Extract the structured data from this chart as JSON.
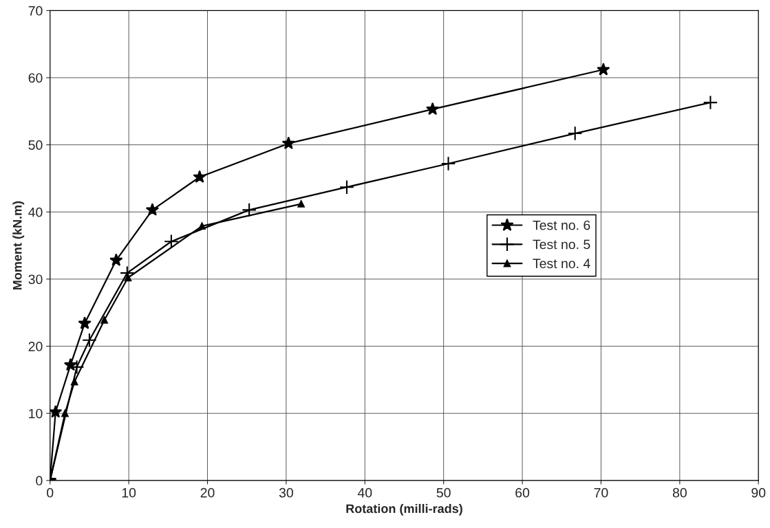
{
  "chart_data": {
    "type": "line",
    "xlabel": "Rotation (milli-rads)",
    "ylabel": "Moment (kN.m)",
    "xlim": [
      0,
      90
    ],
    "xticks": [
      0,
      10,
      20,
      30,
      40,
      50,
      60,
      70,
      80,
      90
    ],
    "ylim": [
      0,
      70
    ],
    "yticks": [
      0,
      10,
      20,
      30,
      40,
      50,
      60,
      70
    ],
    "grid": true,
    "legend": "right",
    "line_style": "solid",
    "series": [
      {
        "name": "Test no. 6",
        "color": "#000000",
        "marker": "star",
        "x": [
          0,
          0.7,
          2.6,
          4.4,
          8.4,
          13.0,
          19.0,
          30.3,
          48.6,
          70.3
        ],
        "values": [
          0,
          10.2,
          17.2,
          23.4,
          32.8,
          40.3,
          45.2,
          50.2,
          55.3,
          61.2
        ]
      },
      {
        "name": "Test no. 5",
        "color": "#000000",
        "marker": "cross",
        "x": [
          0,
          3.4,
          5.0,
          9.8,
          15.4,
          25.3,
          37.7,
          50.6,
          66.7,
          83.9
        ],
        "values": [
          0,
          16.9,
          20.9,
          30.9,
          35.6,
          40.3,
          43.7,
          47.2,
          51.7,
          56.3
        ]
      },
      {
        "name": "Test no. 4",
        "color": "#000000",
        "marker": "triangle",
        "x": [
          0,
          1.9,
          3.1,
          6.9,
          9.9,
          19.3,
          31.9
        ],
        "values": [
          0,
          10,
          14.7,
          23.9,
          30.2,
          37.9,
          41.2
        ]
      }
    ]
  }
}
